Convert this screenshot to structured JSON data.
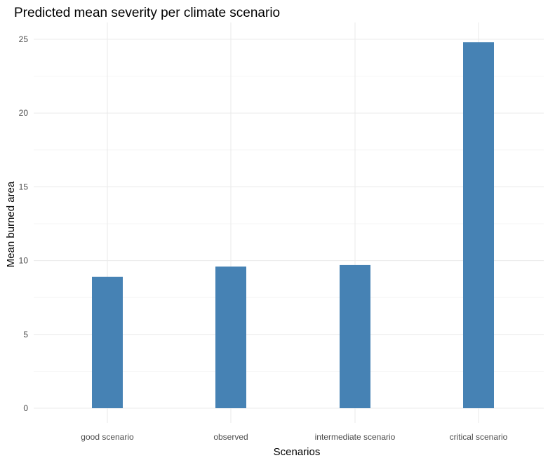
{
  "chart_data": {
    "type": "bar",
    "title": "Predicted mean severity per climate scenario",
    "xlabel": "Scenarios",
    "ylabel": "Mean burned area",
    "categories": [
      "good scenario",
      "observed",
      "intermediate scenario",
      "critical scenario"
    ],
    "values": [
      8.9,
      9.6,
      9.7,
      24.8
    ],
    "ylim": [
      0,
      26
    ],
    "yticks": [
      "0",
      "5",
      "10",
      "15",
      "20",
      "25"
    ],
    "bar_color": "#4682b4",
    "grid": true,
    "legend": "none"
  }
}
